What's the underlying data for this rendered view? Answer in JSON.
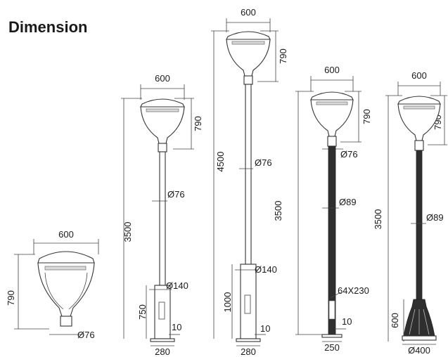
{
  "title": "Dimension",
  "fixtures": [
    {
      "width": "600",
      "height": "790",
      "diameter": "Ø76"
    },
    {
      "width": "600",
      "head_height": "790",
      "total_height": "3500",
      "pole_dia": "Ø76",
      "base_dia": "Ø140",
      "base_height": "750",
      "door": "10",
      "base_width": "280"
    },
    {
      "width": "600",
      "head_height": "790",
      "total_height": "4500",
      "pole_dia": "Ø76",
      "base_dia": "Ø140",
      "base_height": "1000",
      "door": "10",
      "base_width": "280"
    },
    {
      "width": "600",
      "head_height": "790",
      "total_height": "3500",
      "top_dia": "Ø76",
      "pole_dia": "Ø89",
      "plate": "64X230",
      "door": "10",
      "base_width": "250"
    },
    {
      "width": "600",
      "head_height": "790",
      "total_height": "3500",
      "pole_dia": "Ø89",
      "base_height": "600",
      "base_dia": "Ø400"
    }
  ]
}
